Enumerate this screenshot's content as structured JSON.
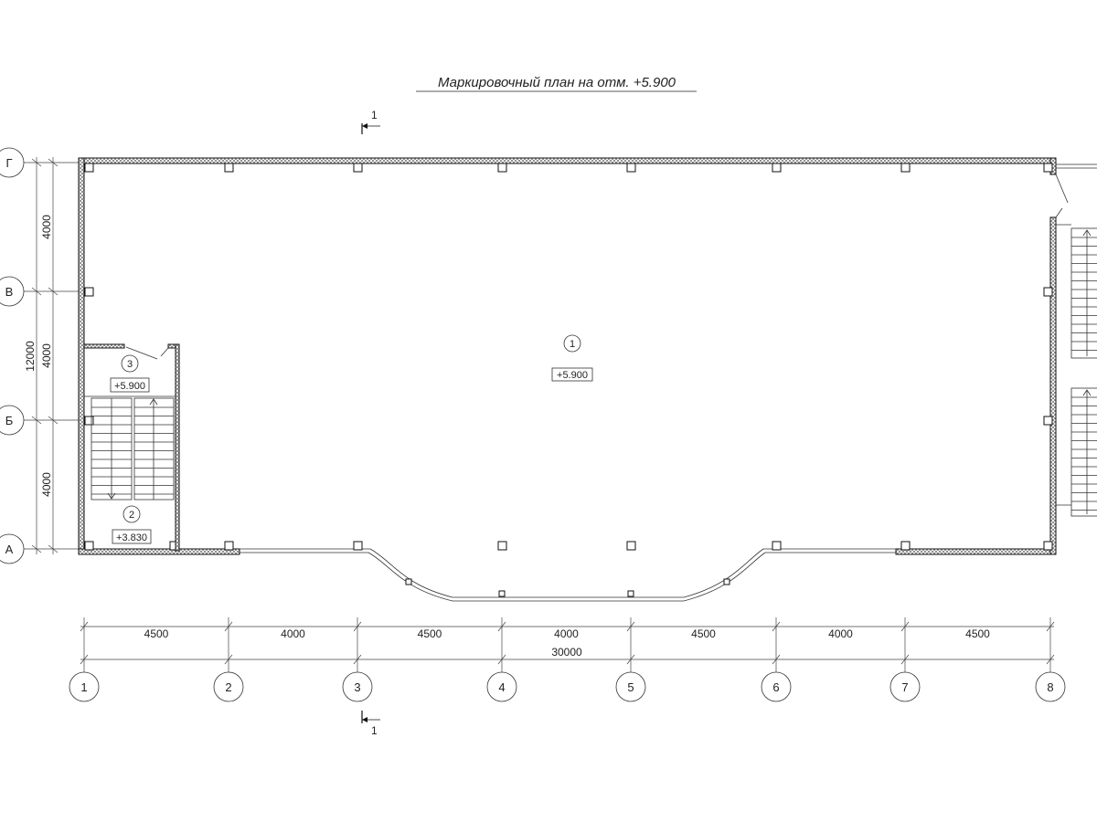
{
  "title": "Маркировочный план на отм. +5.900",
  "section_mark": {
    "label": "1"
  },
  "axes_columns": [
    "1",
    "2",
    "3",
    "4",
    "5",
    "6",
    "7",
    "8"
  ],
  "axes_rows": [
    "Г",
    "В",
    "Б",
    "А"
  ],
  "dimensions": {
    "bays": [
      "4500",
      "4000",
      "4500",
      "4000",
      "4500",
      "4000",
      "4500"
    ],
    "total_length": "30000",
    "row_spans": [
      "4000",
      "4000",
      "4000"
    ],
    "total_width": "12000"
  },
  "rooms": [
    {
      "number": "1",
      "elevation": "+5.900"
    },
    {
      "number": "2",
      "elevation": "+3.830"
    },
    {
      "number": "3",
      "elevation": "+5.900"
    }
  ]
}
